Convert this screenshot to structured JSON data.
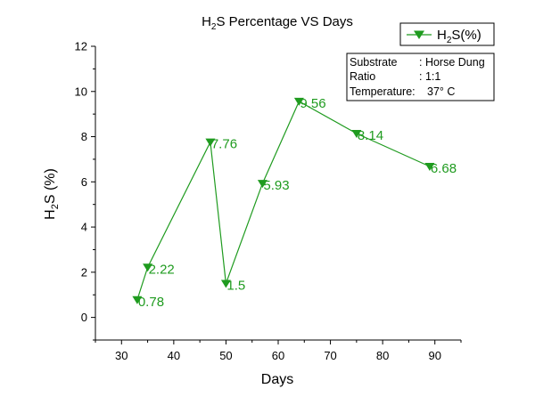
{
  "chart_data": {
    "type": "line",
    "title": {
      "main": "H",
      "sub": "2",
      "rest": "S Percentage VS Days"
    },
    "xlabel": "Days",
    "ylabel": {
      "main": "H",
      "sub": "2",
      "rest": "S (%)"
    },
    "xlim": [
      25,
      95
    ],
    "ylim": [
      -1,
      12
    ],
    "x_ticks": [
      30,
      40,
      50,
      60,
      70,
      80,
      90
    ],
    "y_ticks": [
      0,
      2,
      4,
      6,
      8,
      10,
      12
    ],
    "grid": false,
    "legend_position": "top-right",
    "series": [
      {
        "name": {
          "main": "H",
          "sub": "2",
          "rest": "S(%)"
        },
        "color": "#1f9b1f",
        "marker": "triangle-down",
        "x": [
          33,
          35,
          47,
          50,
          57,
          64,
          75,
          89
        ],
        "y": [
          0.78,
          2.22,
          7.76,
          1.5,
          5.93,
          9.56,
          8.14,
          6.68
        ],
        "labels": [
          "0.78",
          "2.22",
          "7.76",
          "1.5",
          "5.93",
          "9.56",
          "8.14",
          "6.68"
        ]
      }
    ],
    "info_box": [
      {
        "key": "Substrate",
        "value": ": Horse Dung"
      },
      {
        "key": "Ratio",
        "value": ": 1:1"
      },
      {
        "key": "Temperature:",
        "value": "37° C"
      }
    ]
  }
}
